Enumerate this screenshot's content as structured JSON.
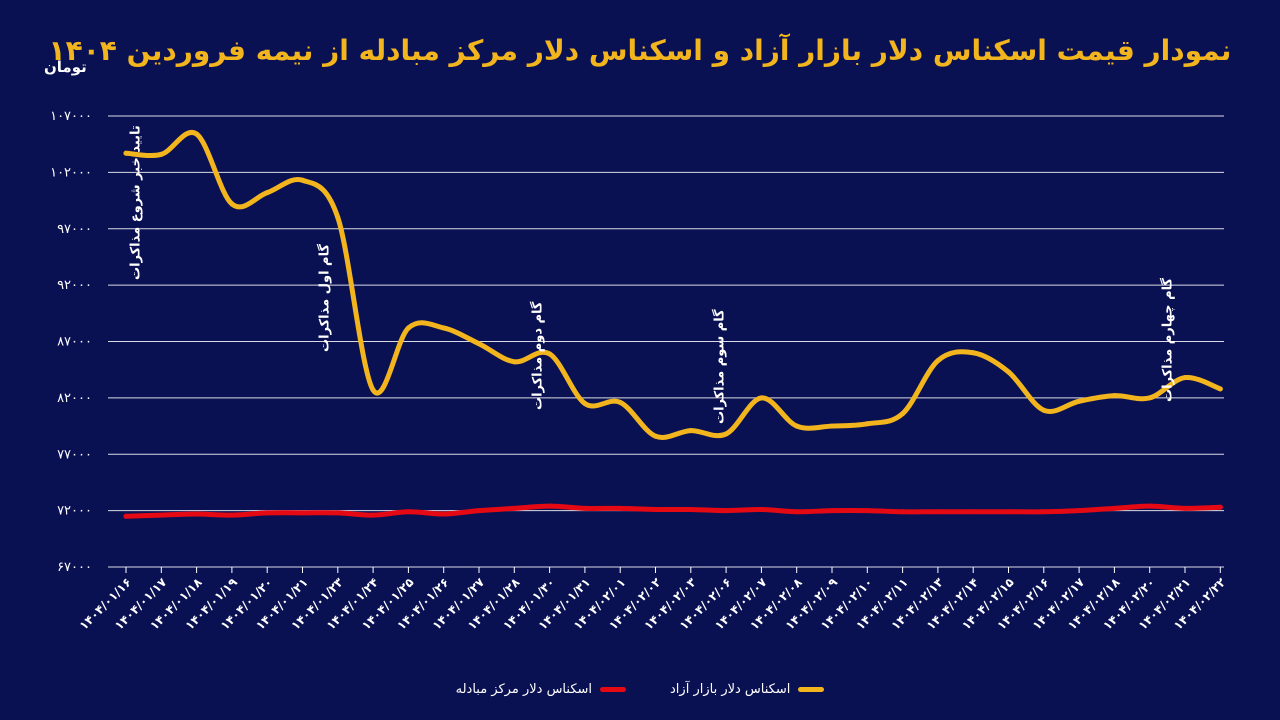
{
  "header": {
    "title": "نمودار قیمت اسکناس دلار بازار آزاد و اسکناس دلار مرکز مبادله از نیمه فروردین ۱۴۰۴",
    "unit_label": "تومان"
  },
  "legend": [
    {
      "label": "اسکناس دلار بازار آزاد",
      "color": "#f3b51e"
    },
    {
      "label": "اسکناس دلار مرکز مبادله",
      "color": "#e50914"
    }
  ],
  "chart_data": {
    "type": "line",
    "title": "نمودار قیمت اسکناس دلار بازار آزاد و اسکناس دلار مرکز مبادله از نیمه فروردین ۱۴۰۴",
    "ylabel": "تومان",
    "xlabel": "",
    "ylim": [
      67000,
      107000
    ],
    "yticks": [
      67000,
      72000,
      77000,
      82000,
      87000,
      92000,
      97000,
      102000,
      107000
    ],
    "ytick_labels": [
      "۶۷۰۰۰",
      "۷۲۰۰۰",
      "۷۷۰۰۰",
      "۸۲۰۰۰",
      "۸۷۰۰۰",
      "۹۲۰۰۰",
      "۹۷۰۰۰",
      "۱۰۲۰۰۰",
      "۱۰۷۰۰۰"
    ],
    "grid": true,
    "legend_position": "bottom",
    "categories": [
      "۱۴۰۴/۰۱/۱۶",
      "۱۴۰۴/۰۱/۱۷",
      "۱۴۰۴/۰۱/۱۸",
      "۱۴۰۴/۰۱/۱۹",
      "۱۴۰۴/۰۱/۲۰",
      "۱۴۰۴/۰۱/۲۱",
      "۱۴۰۴/۰۱/۲۳",
      "۱۴۰۴/۰۱/۲۴",
      "۱۴۰۴/۰۱/۲۵",
      "۱۴۰۴/۰۱/۲۶",
      "۱۴۰۴/۰۱/۲۷",
      "۱۴۰۴/۰۱/۲۸",
      "۱۴۰۴/۰۱/۳۰",
      "۱۴۰۴/۰۱/۳۱",
      "۱۴۰۴/۰۲/۰۱",
      "۱۴۰۴/۰۲/۰۲",
      "۱۴۰۴/۰۲/۰۳",
      "۱۴۰۴/۰۲/۰۶",
      "۱۴۰۴/۰۲/۰۷",
      "۱۴۰۴/۰۲/۰۸",
      "۱۴۰۴/۰۲/۰۹",
      "۱۴۰۴/۰۲/۱۰",
      "۱۴۰۴/۰۲/۱۱",
      "۱۴۰۴/۰۲/۱۳",
      "۱۴۰۴/۰۲/۱۴",
      "۱۴۰۴/۰۲/۱۵",
      "۱۴۰۴/۰۲/۱۶",
      "۱۴۰۴/۰۲/۱۷",
      "۱۴۰۴/۰۲/۱۸",
      "۱۴۰۴/۰۲/۲۰",
      "۱۴۰۴/۰۲/۲۱",
      "۱۴۰۴/۰۲/۲۲"
    ],
    "series": [
      {
        "name": "اسکناس دلار بازار آزاد",
        "color": "#f3b51e",
        "values": [
          103700,
          103600,
          105400,
          99200,
          100200,
          101300,
          98000,
          82700,
          88200,
          88200,
          86800,
          85200,
          85900,
          81500,
          81600,
          78600,
          79100,
          78800,
          82000,
          79500,
          79500,
          79700,
          80600,
          85300,
          86000,
          84300,
          80900,
          81700,
          82200,
          82000,
          83800,
          82800
        ]
      },
      {
        "name": "اسکناس دلار مرکز مبادله",
        "color": "#e50914",
        "values": [
          71500,
          71600,
          71700,
          71600,
          71800,
          71800,
          71800,
          71600,
          71900,
          71700,
          72000,
          72200,
          72400,
          72200,
          72200,
          72100,
          72100,
          72000,
          72100,
          71900,
          72000,
          72000,
          71900,
          71900,
          71900,
          71900,
          71900,
          72000,
          72200,
          72400,
          72200,
          72300
        ]
      }
    ],
    "annotations": [
      {
        "text": "تایید خبر شروع مذاکرات",
        "category_index": 0
      },
      {
        "text": "گام اول مذاکرات",
        "category_index": 6
      },
      {
        "text": "گام دوم مذاکرات",
        "category_index": 12
      },
      {
        "text": "گام سوم مذاکرات",
        "category_index": 17
      },
      {
        "text": "گام چهارم مذاکرات",
        "category_index": 30
      }
    ]
  }
}
